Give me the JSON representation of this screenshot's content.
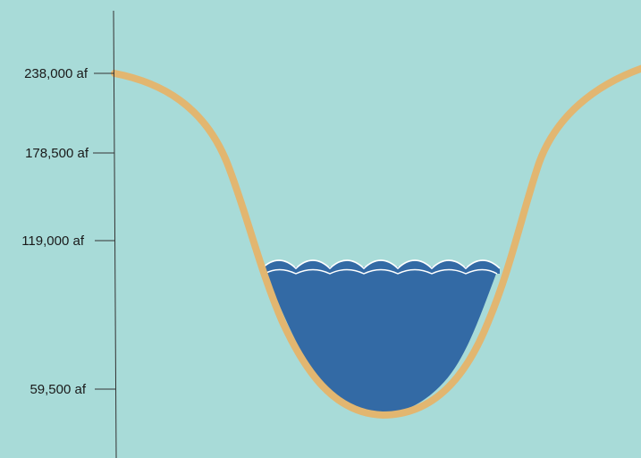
{
  "scale": {
    "ticks": [
      {
        "label": "238,000 af",
        "value": 238000
      },
      {
        "label": "178,500 af",
        "value": 178500
      },
      {
        "label": "119,000 af",
        "value": 119000
      },
      {
        "label": "59,500 af",
        "value": 59500
      }
    ],
    "current_level_af": 112000
  },
  "colors": {
    "background": "#a8dbd8",
    "terrain": "#e2b670",
    "water": "#336aa5",
    "wave": "#ffffff",
    "axis": "#333333"
  }
}
